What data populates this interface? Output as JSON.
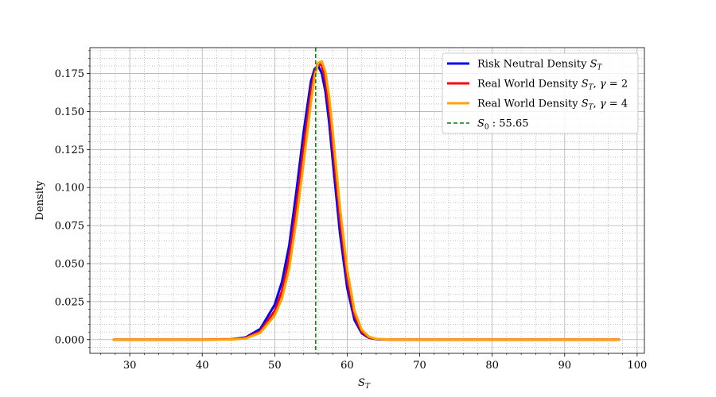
{
  "chart_data": {
    "type": "line",
    "title": "",
    "xlabel": "S_T",
    "ylabel": "Density",
    "xlim": [
      24.5,
      101
    ],
    "ylim": [
      -0.009,
      0.192
    ],
    "x_ticks": [
      30,
      40,
      50,
      60,
      70,
      80,
      90,
      100
    ],
    "y_ticks": [
      0.0,
      0.025,
      0.05,
      0.075,
      0.1,
      0.125,
      0.15,
      0.175
    ],
    "grid": "major solid, minor dotted",
    "legend_position": "upper-right",
    "x": [
      27.8,
      40,
      44,
      46,
      48,
      50,
      51,
      52,
      53,
      54,
      55,
      55.5,
      56,
      56.5,
      57,
      57.5,
      58,
      59,
      60,
      61,
      62,
      63,
      64,
      66,
      70,
      80,
      97.5
    ],
    "series": [
      {
        "name": "Risk Neutral Density S_T",
        "color": "#0000ff",
        "values": [
          0.0,
          0.0,
          0.0003,
          0.0015,
          0.007,
          0.023,
          0.038,
          0.062,
          0.098,
          0.137,
          0.17,
          0.178,
          0.18,
          0.175,
          0.163,
          0.143,
          0.118,
          0.07,
          0.034,
          0.013,
          0.0042,
          0.0012,
          0.0003,
          0.0,
          0.0,
          0.0,
          0.0
        ]
      },
      {
        "name": "Real World Density S_T, γ = 2",
        "color": "#ff0000",
        "values": [
          0.0,
          0.0,
          0.0002,
          0.0011,
          0.0055,
          0.019,
          0.032,
          0.054,
          0.088,
          0.127,
          0.163,
          0.176,
          0.182,
          0.18,
          0.17,
          0.152,
          0.128,
          0.079,
          0.04,
          0.016,
          0.0052,
          0.0015,
          0.0004,
          0.0,
          0.0,
          0.0,
          0.0
        ]
      },
      {
        "name": "Real World Density S_T, γ = 4",
        "color": "#ffa500",
        "values": [
          0.0,
          0.0,
          0.0001,
          0.0008,
          0.0045,
          0.016,
          0.027,
          0.047,
          0.079,
          0.117,
          0.156,
          0.173,
          0.182,
          0.183,
          0.176,
          0.16,
          0.137,
          0.087,
          0.046,
          0.019,
          0.0065,
          0.0019,
          0.0005,
          0.0,
          0.0,
          0.0,
          0.0
        ]
      }
    ],
    "reference_line": {
      "name": "S_0 : 55.65",
      "x": 55.65,
      "color": "#008000",
      "style": "dashed"
    }
  }
}
